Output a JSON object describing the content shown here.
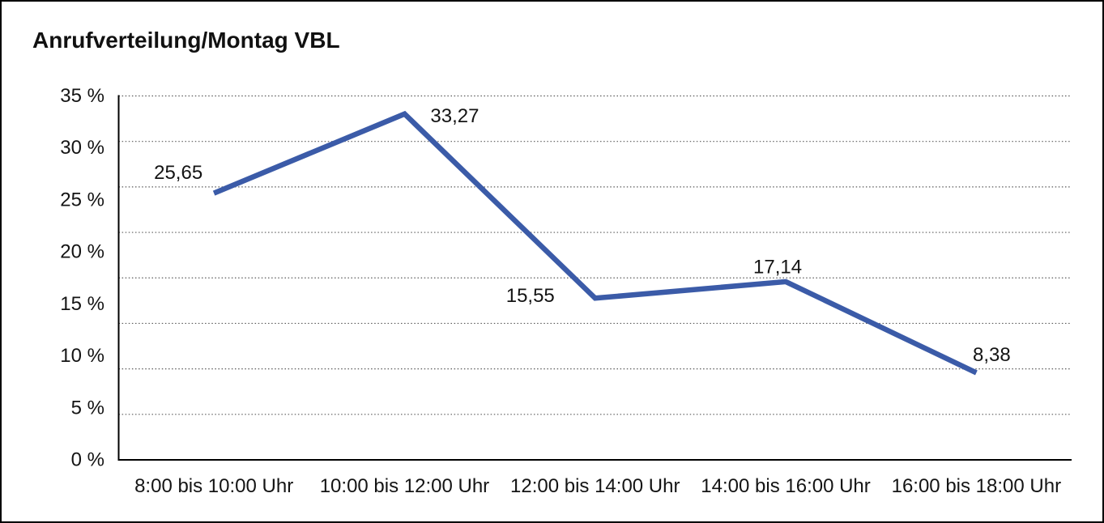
{
  "window": {
    "background_color": "#ffffff",
    "border_color": "#000000"
  },
  "chart_data": {
    "type": "line",
    "title": "Anrufverteilung/Montag VBL",
    "xlabel": "",
    "ylabel": "",
    "categories": [
      "8:00 bis 10:00 Uhr",
      "10:00 bis 12:00 Uhr",
      "12:00 bis 14:00 Uhr",
      "14:00 bis 16:00 Uhr",
      "16:00 bis 18:00 Uhr"
    ],
    "series": [
      {
        "name": "Anrufverteilung Montag VBL",
        "values": [
          25.65,
          33.27,
          15.55,
          17.14,
          8.38
        ],
        "point_labels": [
          "25,65",
          "33,27",
          "15,55",
          "17,14",
          "8,38"
        ]
      }
    ],
    "ylim": [
      0,
      35
    ],
    "y_tick_step": 5,
    "y_tick_labels_top_to_bottom": [
      "35 %",
      "30 %",
      "25 %",
      "20 %",
      "15 %",
      "10 %",
      "5 %",
      "0 %"
    ],
    "grid": "horizontal dotted lines, no vertical grid, no top/right frame",
    "legend": "none",
    "colors": {
      "line": "#3B5BA8",
      "axis": "#000000",
      "gridline": "#5a5a5a",
      "text": "#141414"
    }
  }
}
